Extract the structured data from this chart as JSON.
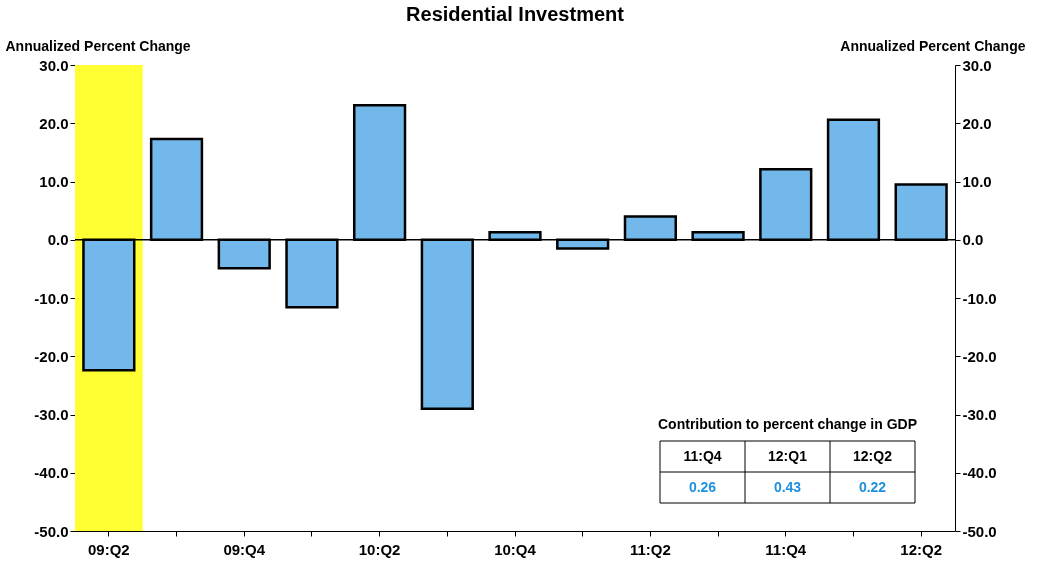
{
  "chart_data": {
    "type": "bar",
    "title": "Residential Investment",
    "ylabel": "Annualized Percent Change",
    "y2label": "Annualized Percent Change",
    "categories": [
      "09:Q2",
      null,
      "09:Q4",
      null,
      "10:Q2",
      null,
      "10:Q4",
      null,
      "11:Q2",
      null,
      "11:Q4",
      null,
      "12:Q2"
    ],
    "values": [
      -22.4,
      17.3,
      -4.9,
      -11.6,
      23.1,
      -29.0,
      1.3,
      -1.5,
      4.0,
      1.3,
      12.1,
      20.6,
      9.5
    ],
    "color": "#72b8eb",
    "ylim": [
      -50,
      30
    ],
    "yticks": [
      {
        "value": -50,
        "label": "-50.0"
      },
      {
        "value": -40,
        "label": "-40.0"
      },
      {
        "value": -30,
        "label": "-30.0"
      },
      {
        "value": -20,
        "label": "-20.0"
      },
      {
        "value": -10,
        "label": "-10.0"
      },
      {
        "value": 0,
        "label": "0.0"
      },
      {
        "value": 10,
        "label": "10.0"
      },
      {
        "value": 20,
        "label": "20.0"
      },
      {
        "value": 30,
        "label": "30.0"
      }
    ],
    "y2lim": [
      -50,
      30
    ],
    "y2ticks": [
      {
        "value": -50,
        "label": "-50.0"
      },
      {
        "value": -40,
        "label": "-40.0"
      },
      {
        "value": -30,
        "label": "-30.0"
      },
      {
        "value": -20,
        "label": "-20.0"
      },
      {
        "value": -10,
        "label": "-10.0"
      },
      {
        "value": 0,
        "label": "0.0"
      },
      {
        "value": 10,
        "label": "10.0"
      },
      {
        "value": 20,
        "label": "20.0"
      },
      {
        "value": 30,
        "label": "30.0"
      }
    ],
    "bands": [
      {
        "axis": "x",
        "from": "09:Q2",
        "to": "09:Q2",
        "color": "#ffff33"
      }
    ],
    "annotations": [
      "Contribution to percent change in GDP",
      "11:Q4",
      "12:Q1",
      "12:Q2",
      "0.26",
      "0.43",
      "0.22"
    ],
    "ref_lines": [
      {
        "axis": "y",
        "value": 0,
        "color": "#000000"
      }
    ],
    "grid": false
  }
}
